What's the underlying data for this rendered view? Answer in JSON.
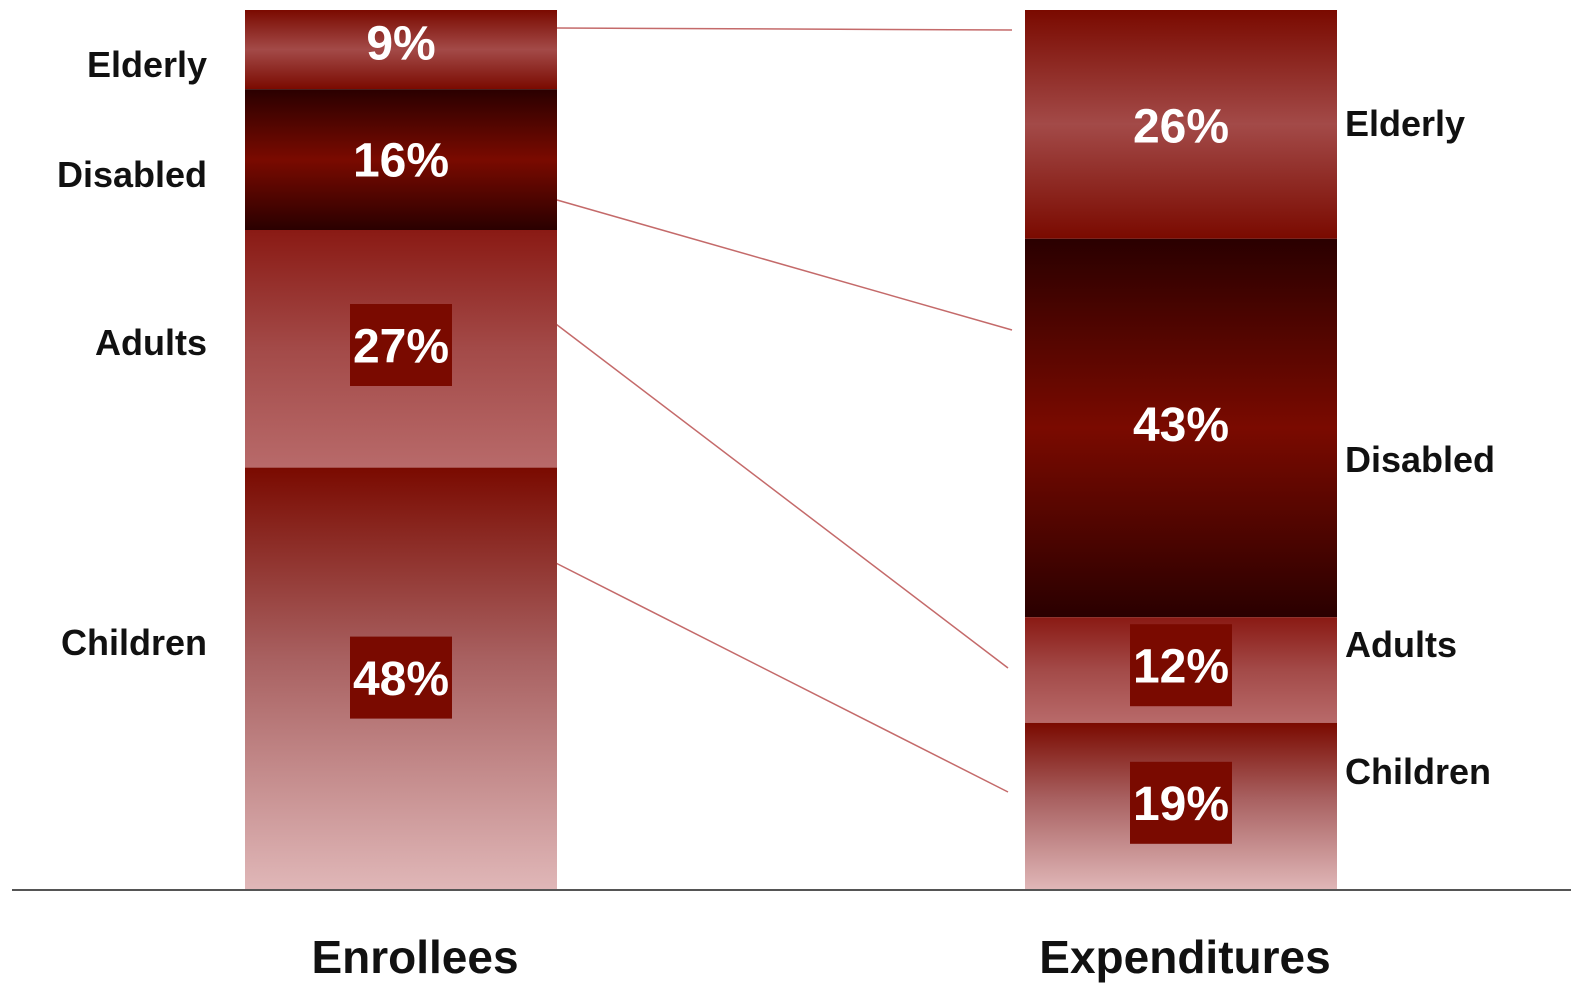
{
  "chart_data": {
    "type": "bar",
    "stacked": true,
    "normalized": true,
    "title": "",
    "categories": [
      "Enrollees",
      "Expenditures"
    ],
    "series": [
      {
        "name": "Elderly",
        "values": [
          9,
          26
        ],
        "labels": [
          "9%",
          "26%"
        ]
      },
      {
        "name": "Disabled",
        "values": [
          16,
          43
        ],
        "labels": [
          "16%",
          "43%"
        ]
      },
      {
        "name": "Adults",
        "values": [
          27,
          12
        ],
        "labels": [
          "27%",
          "12%"
        ]
      },
      {
        "name": "Children",
        "values": [
          48,
          19
        ],
        "labels": [
          "48%",
          "19%"
        ]
      }
    ],
    "unit": "%",
    "ylim": [
      0,
      100
    ],
    "grid": false,
    "legend": "none",
    "connector_lines": true,
    "colors": {
      "dark_red": "#7a0a00",
      "deep_red": "#2a0000",
      "mid_red": "#a34a48",
      "light_pink": "#e0b7b8",
      "connector": "#c46a6a",
      "baseline": "#555555"
    }
  }
}
